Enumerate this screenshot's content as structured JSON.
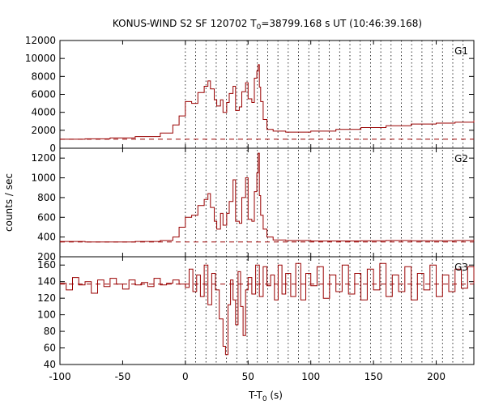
{
  "chart_data": {
    "type": "line",
    "title_main": "KONUS-WIND S2 SF 120702 T",
    "title_sub": "0",
    "title_rest": "=38799.168 s UT (10:46:39.168)",
    "xlabel_main": "T-T",
    "xlabel_sub": "0",
    "xlabel_rest": " (s)",
    "ylabel": "counts / sec",
    "xlim": [
      -100,
      230
    ],
    "x_ticks": [
      -100,
      -50,
      0,
      50,
      100,
      150,
      200
    ],
    "vertical_markers": [
      0,
      8.2,
      16.4,
      24.6,
      32.8,
      41,
      49.2,
      57.4,
      65.6,
      73.8,
      82,
      90.2,
      98.4,
      106.6,
      114.8,
      123,
      131.2,
      139.4,
      147.6,
      155.8,
      164,
      172.2,
      180.4,
      188.6,
      196.8,
      205,
      213.2,
      221.4
    ],
    "line_color": "#990000",
    "panels": [
      {
        "name": "G1",
        "ylim": [
          0,
          12000
        ],
        "y_ticks": [
          0,
          2000,
          4000,
          6000,
          8000,
          10000,
          12000
        ],
        "background_level": 1000,
        "x": [
          -100,
          -80,
          -60,
          -40,
          -20,
          -10,
          -5,
          0,
          5,
          10,
          15,
          18,
          20,
          23,
          25,
          28,
          30,
          33,
          35,
          38,
          40,
          43,
          45,
          48,
          50,
          53,
          55,
          57,
          58,
          59,
          60,
          62,
          65,
          70,
          80,
          100,
          120,
          140,
          160,
          180,
          200,
          215,
          230
        ],
        "y": [
          1000,
          1050,
          1150,
          1300,
          1700,
          2600,
          3600,
          5200,
          5000,
          6200,
          6900,
          7500,
          6600,
          5400,
          4700,
          5400,
          4000,
          5100,
          6100,
          6900,
          4200,
          4600,
          6300,
          7300,
          5500,
          5100,
          7800,
          8600,
          9300,
          6800,
          5200,
          3200,
          2100,
          1900,
          1800,
          1900,
          2100,
          2300,
          2500,
          2700,
          2800,
          2900,
          3100
        ]
      },
      {
        "name": "G2",
        "ylim": [
          200,
          1300
        ],
        "y_ticks": [
          200,
          400,
          600,
          800,
          1000,
          1200
        ],
        "background_level": 350,
        "x": [
          -100,
          -80,
          -60,
          -40,
          -20,
          -10,
          -5,
          0,
          5,
          10,
          15,
          18,
          20,
          23,
          25,
          28,
          30,
          33,
          35,
          38,
          40,
          43,
          45,
          48,
          50,
          53,
          55,
          57,
          58,
          59,
          60,
          62,
          65,
          70,
          80,
          100,
          120,
          140,
          160,
          180,
          200,
          215,
          230
        ],
        "y": [
          355,
          350,
          350,
          355,
          365,
          400,
          500,
          600,
          620,
          720,
          780,
          840,
          700,
          560,
          480,
          640,
          520,
          640,
          760,
          980,
          560,
          540,
          800,
          1000,
          580,
          560,
          860,
          1050,
          1250,
          820,
          620,
          480,
          400,
          370,
          365,
          360,
          360,
          362,
          365,
          362,
          362,
          365,
          370
        ]
      },
      {
        "name": "G3",
        "ylim": [
          40,
          170
        ],
        "y_ticks": [
          40,
          60,
          80,
          100,
          120,
          140,
          160
        ],
        "background_level": 137,
        "x": [
          -100,
          -95,
          -90,
          -85,
          -80,
          -75,
          -70,
          -65,
          -60,
          -55,
          -50,
          -45,
          -40,
          -35,
          -30,
          -25,
          -20,
          -15,
          -10,
          -5,
          0,
          3,
          6,
          9,
          12,
          15,
          18,
          21,
          24,
          27,
          30,
          32,
          34,
          36,
          38,
          40,
          42,
          44,
          46,
          48,
          50,
          53,
          56,
          59,
          62,
          65,
          68,
          71,
          74,
          77,
          80,
          84,
          88,
          92,
          96,
          100,
          105,
          110,
          115,
          120,
          125,
          130,
          135,
          140,
          145,
          150,
          155,
          160,
          165,
          170,
          175,
          180,
          185,
          190,
          195,
          200,
          205,
          210,
          215,
          220,
          225,
          230
        ],
        "y": [
          138,
          130,
          145,
          136,
          140,
          126,
          142,
          134,
          144,
          137,
          131,
          142,
          136,
          139,
          134,
          144,
          136,
          138,
          142,
          137,
          133,
          155,
          128,
          148,
          122,
          160,
          112,
          150,
          130,
          95,
          62,
          52,
          112,
          142,
          118,
          88,
          152,
          110,
          75,
          130,
          145,
          125,
          160,
          122,
          158,
          135,
          148,
          118,
          160,
          125,
          150,
          122,
          162,
          118,
          150,
          135,
          158,
          120,
          148,
          128,
          160,
          125,
          150,
          118,
          155,
          130,
          162,
          122,
          148,
          128,
          158,
          118,
          150,
          130,
          160,
          122,
          148,
          128,
          155,
          132,
          158,
          138
        ]
      }
    ]
  }
}
